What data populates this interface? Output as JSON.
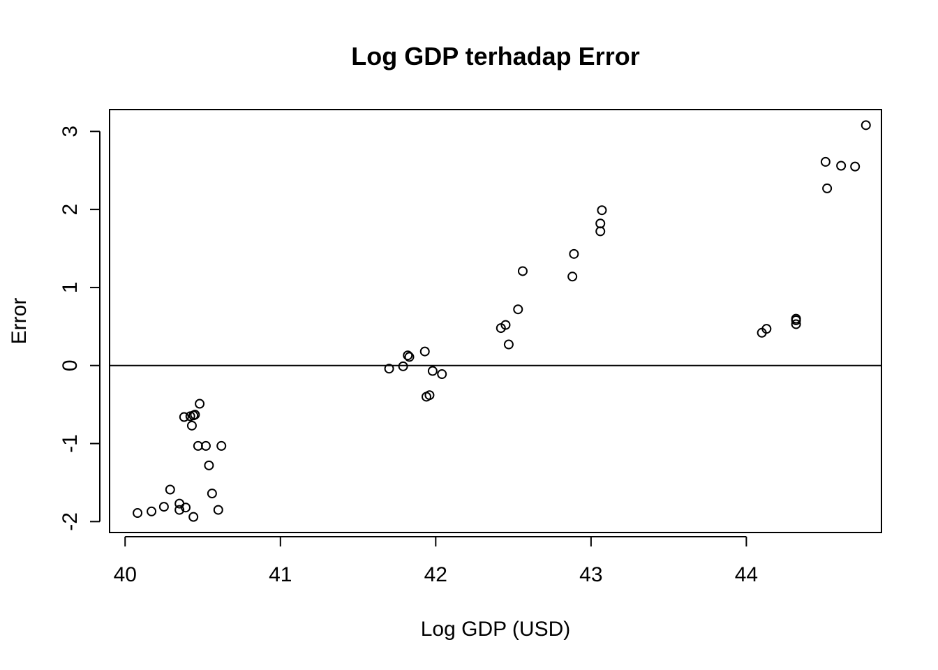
{
  "chart_data": {
    "type": "scatter",
    "title": "Log GDP terhadap Error",
    "xlabel": "Log GDP (USD)",
    "ylabel": "Error",
    "xlim": [
      39.9,
      44.87
    ],
    "ylim": [
      -2.14,
      3.28
    ],
    "xticks": [
      40,
      41,
      42,
      43,
      44
    ],
    "yticks": [
      -2,
      -1,
      0,
      1,
      2,
      3
    ],
    "xtick_labels": [
      "40",
      "41",
      "42",
      "43",
      "44"
    ],
    "ytick_labels": [
      "-2",
      "-1",
      "0",
      "1",
      "2",
      "3"
    ],
    "reference_line_y": 0,
    "grid": false,
    "marker": "open-circle",
    "points": [
      {
        "x": 40.08,
        "y": -1.89
      },
      {
        "x": 40.17,
        "y": -1.87
      },
      {
        "x": 40.25,
        "y": -1.81
      },
      {
        "x": 40.29,
        "y": -1.59
      },
      {
        "x": 40.35,
        "y": -1.77
      },
      {
        "x": 40.35,
        "y": -1.85
      },
      {
        "x": 40.39,
        "y": -1.82
      },
      {
        "x": 40.44,
        "y": -1.94
      },
      {
        "x": 40.38,
        "y": -0.66
      },
      {
        "x": 40.42,
        "y": -0.65
      },
      {
        "x": 40.44,
        "y": -0.64
      },
      {
        "x": 40.45,
        "y": -0.63
      },
      {
        "x": 40.43,
        "y": -0.77
      },
      {
        "x": 40.48,
        "y": -0.49
      },
      {
        "x": 40.47,
        "y": -1.03
      },
      {
        "x": 40.52,
        "y": -1.03
      },
      {
        "x": 40.54,
        "y": -1.28
      },
      {
        "x": 40.56,
        "y": -1.64
      },
      {
        "x": 40.6,
        "y": -1.85
      },
      {
        "x": 40.62,
        "y": -1.03
      },
      {
        "x": 41.7,
        "y": -0.04
      },
      {
        "x": 41.79,
        "y": -0.01
      },
      {
        "x": 41.82,
        "y": 0.13
      },
      {
        "x": 41.83,
        "y": 0.11
      },
      {
        "x": 41.93,
        "y": 0.18
      },
      {
        "x": 41.94,
        "y": -0.4
      },
      {
        "x": 41.96,
        "y": -0.38
      },
      {
        "x": 41.98,
        "y": -0.07
      },
      {
        "x": 42.04,
        "y": -0.11
      },
      {
        "x": 42.42,
        "y": 0.48
      },
      {
        "x": 42.45,
        "y": 0.52
      },
      {
        "x": 42.47,
        "y": 0.27
      },
      {
        "x": 42.53,
        "y": 0.72
      },
      {
        "x": 42.56,
        "y": 1.21
      },
      {
        "x": 42.88,
        "y": 1.14
      },
      {
        "x": 42.89,
        "y": 1.43
      },
      {
        "x": 43.06,
        "y": 1.72
      },
      {
        "x": 43.06,
        "y": 1.82
      },
      {
        "x": 43.07,
        "y": 1.99
      },
      {
        "x": 44.1,
        "y": 0.42
      },
      {
        "x": 44.13,
        "y": 0.47
      },
      {
        "x": 44.32,
        "y": 0.53
      },
      {
        "x": 44.32,
        "y": 0.58
      },
      {
        "x": 44.32,
        "y": 0.6
      },
      {
        "x": 44.51,
        "y": 2.61
      },
      {
        "x": 44.52,
        "y": 2.27
      },
      {
        "x": 44.61,
        "y": 2.56
      },
      {
        "x": 44.7,
        "y": 2.55
      },
      {
        "x": 44.77,
        "y": 3.08
      }
    ]
  }
}
